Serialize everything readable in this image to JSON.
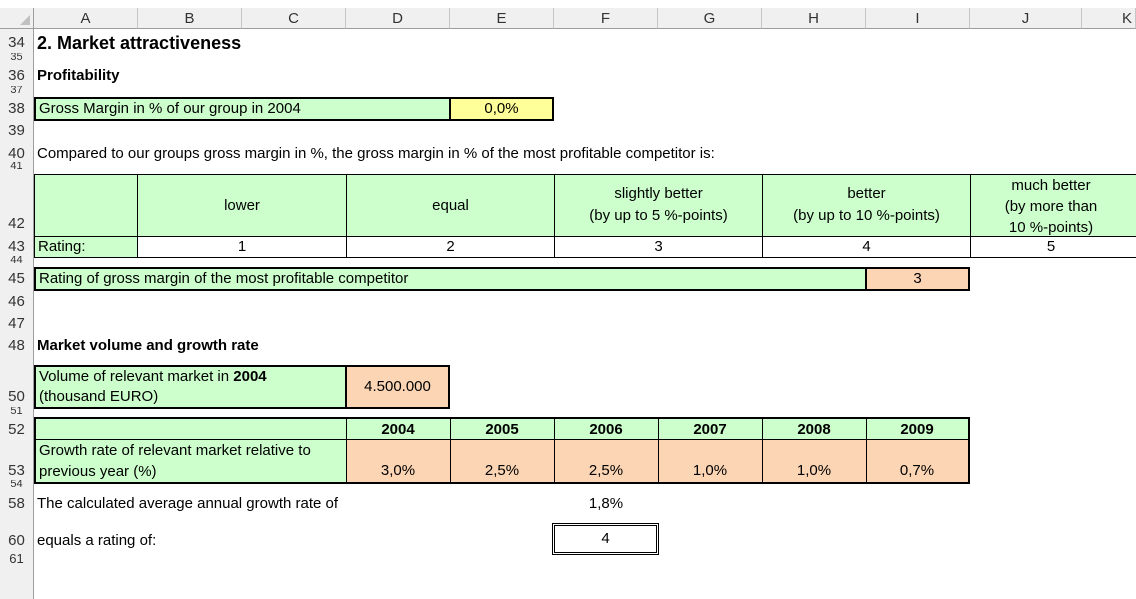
{
  "columns": [
    "A",
    "B",
    "C",
    "D",
    "E",
    "F",
    "G",
    "H",
    "I",
    "J",
    "K"
  ],
  "rows": [
    "34",
    "35",
    "36",
    "37",
    "38",
    "39",
    "40",
    "41",
    "42",
    "43",
    "44",
    "45",
    "46",
    "47",
    "48",
    "50",
    "51",
    "52",
    "53",
    "54",
    "58",
    "60",
    "61"
  ],
  "title": "2. Market attractiveness",
  "profitability": {
    "heading": "Profitability",
    "gross_margin_label": "Gross Margin in % of our group in 2004",
    "gross_margin_value": "0,0%",
    "compare_text": "Compared to our groups gross margin in %, the gross margin in % of the most profitable competitor is:",
    "scale": [
      {
        "line1": "lower",
        "line2": "",
        "rating": "1"
      },
      {
        "line1": "equal",
        "line2": "",
        "rating": "2"
      },
      {
        "line1": "slightly better",
        "line2": "(by up to 5 %-points)",
        "rating": "3"
      },
      {
        "line1": "better",
        "line2": "(by up to 10 %-points)",
        "rating": "4"
      },
      {
        "line1": "much better",
        "line2": "(by more than",
        "line3": "10 %-points)",
        "rating": "5"
      }
    ],
    "rating_label": "Rating:",
    "competitor_label": "Rating of gross margin of the most profitable competitor",
    "competitor_value": "3"
  },
  "market": {
    "heading": "Market volume and growth rate",
    "volume_label_1": "Volume of relevant market in ",
    "volume_label_year": "2004",
    "volume_label_2": "(thousand EURO)",
    "volume_value": "4.500.000",
    "years": [
      "2004",
      "2005",
      "2006",
      "2007",
      "2008",
      "2009"
    ],
    "growth_label_1": "Growth rate of relevant market relative to",
    "growth_label_2": "previous year (%)",
    "growth_values": [
      "3,0%",
      "2,5%",
      "2,5%",
      "1,0%",
      "1,0%",
      "0,7%"
    ],
    "avg_label": "The calculated average annual growth rate of",
    "avg_value": "1,8%",
    "equals_label": "equals a rating of:",
    "equals_value": "4"
  }
}
